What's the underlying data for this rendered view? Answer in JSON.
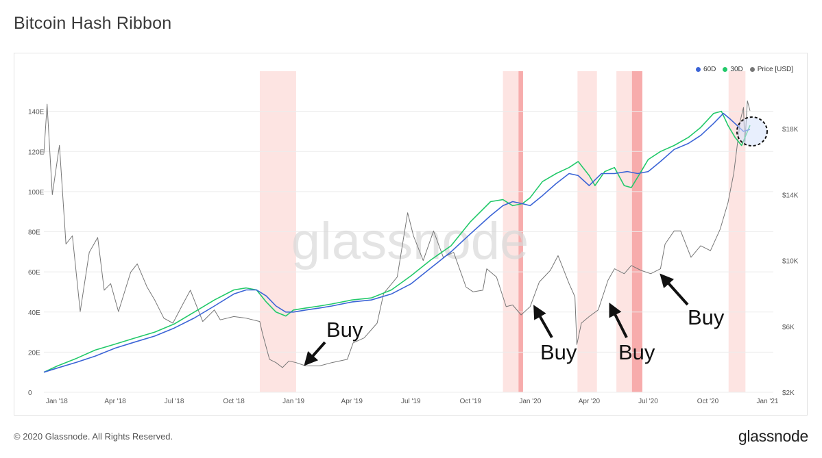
{
  "page": {
    "title": "Bitcoin Hash Ribbon",
    "footer_copyright": "© 2020 Glassnode. All Rights Reserved.",
    "footer_logo": "glassnode",
    "watermark": "glassnode"
  },
  "chart_data": {
    "type": "line",
    "title": "Bitcoin Hash Ribbon",
    "legend": {
      "placement": "top-right",
      "items": [
        {
          "name": "60D",
          "color": "#3b64d6"
        },
        {
          "name": "30D",
          "color": "#22c96a"
        },
        {
          "name": "Price [USD]",
          "color": "#777777"
        }
      ]
    },
    "x_ticks": [
      "Jan '18",
      "Apr '18",
      "Jul '18",
      "Oct '18",
      "Jan '19",
      "Apr '19",
      "Jul '19",
      "Oct '19",
      "Jan '20",
      "Apr '20",
      "Jul '20",
      "Oct '20",
      "Jan '21"
    ],
    "x_tick_dates": [
      "2018-01-01",
      "2018-04-01",
      "2018-07-01",
      "2018-10-01",
      "2019-01-01",
      "2019-04-01",
      "2019-07-01",
      "2019-10-01",
      "2020-01-01",
      "2020-04-01",
      "2020-07-01",
      "2020-10-01",
      "2021-01-01"
    ],
    "y_left": {
      "label": "",
      "ticks": [
        "0",
        "20E",
        "40E",
        "60E",
        "80E",
        "100E",
        "120E",
        "140E"
      ],
      "tick_values": [
        0,
        20,
        40,
        60,
        80,
        100,
        120,
        140
      ],
      "range": [
        0,
        160
      ]
    },
    "y_right": {
      "label": "",
      "ticks": [
        "$2K",
        "$6K",
        "$10K",
        "$14K",
        "$18K"
      ],
      "tick_values": [
        2000,
        6000,
        10000,
        14000,
        18000
      ],
      "range": [
        2000,
        21500
      ]
    },
    "capitulation_bands": [
      {
        "start": "2018-11-10",
        "end": "2019-01-05",
        "shade": "light"
      },
      {
        "start": "2019-11-20",
        "end": "2019-12-14",
        "shade": "light"
      },
      {
        "start": "2019-12-14",
        "end": "2019-12-21",
        "shade": "dark"
      },
      {
        "start": "2020-03-14",
        "end": "2020-04-13",
        "shade": "light"
      },
      {
        "start": "2020-05-13",
        "end": "2020-06-06",
        "shade": "light"
      },
      {
        "start": "2020-06-06",
        "end": "2020-06-22",
        "shade": "dark"
      },
      {
        "start": "2020-11-02",
        "end": "2020-11-28",
        "shade": "light"
      }
    ],
    "series": [
      {
        "name": "60D",
        "axis": "left",
        "color": "#3b64d6",
        "x": [
          "2017-12-12",
          "2018-01-01",
          "2018-02-01",
          "2018-03-01",
          "2018-04-01",
          "2018-05-01",
          "2018-06-01",
          "2018-07-01",
          "2018-08-01",
          "2018-09-01",
          "2018-10-01",
          "2018-10-20",
          "2018-11-05",
          "2018-11-20",
          "2018-12-05",
          "2018-12-20",
          "2019-01-01",
          "2019-01-20",
          "2019-02-10",
          "2019-03-01",
          "2019-04-01",
          "2019-05-01",
          "2019-06-01",
          "2019-07-01",
          "2019-08-01",
          "2019-09-01",
          "2019-10-01",
          "2019-11-01",
          "2019-11-20",
          "2019-12-05",
          "2019-12-20",
          "2020-01-01",
          "2020-01-20",
          "2020-02-10",
          "2020-03-01",
          "2020-03-15",
          "2020-04-01",
          "2020-04-20",
          "2020-05-10",
          "2020-05-30",
          "2020-06-15",
          "2020-07-01",
          "2020-07-20",
          "2020-08-10",
          "2020-09-01",
          "2020-09-20",
          "2020-10-10",
          "2020-10-25",
          "2020-11-05",
          "2020-11-15",
          "2020-11-25",
          "2020-12-05"
        ],
        "y": [
          10,
          12,
          15,
          18,
          22,
          25,
          28,
          32,
          37,
          43,
          49,
          51,
          51,
          48,
          43,
          40,
          40,
          41,
          42,
          43,
          45,
          46,
          49,
          54,
          62,
          70,
          79,
          88,
          93,
          95,
          94,
          93,
          98,
          104,
          109,
          108,
          103,
          109,
          109,
          110,
          109,
          110,
          115,
          121,
          124,
          128,
          134,
          139,
          136,
          133,
          130,
          131
        ]
      },
      {
        "name": "30D",
        "axis": "left",
        "color": "#22c96a",
        "x": [
          "2017-12-12",
          "2018-01-01",
          "2018-02-01",
          "2018-03-01",
          "2018-04-01",
          "2018-05-01",
          "2018-06-01",
          "2018-07-01",
          "2018-08-01",
          "2018-09-01",
          "2018-10-01",
          "2018-10-20",
          "2018-11-05",
          "2018-11-20",
          "2018-12-05",
          "2018-12-20",
          "2019-01-01",
          "2019-01-20",
          "2019-02-10",
          "2019-03-01",
          "2019-04-01",
          "2019-05-01",
          "2019-06-01",
          "2019-07-01",
          "2019-08-01",
          "2019-09-01",
          "2019-10-01",
          "2019-11-01",
          "2019-11-20",
          "2019-12-05",
          "2019-12-20",
          "2020-01-01",
          "2020-01-20",
          "2020-02-10",
          "2020-03-01",
          "2020-03-15",
          "2020-04-01",
          "2020-04-10",
          "2020-04-25",
          "2020-05-10",
          "2020-05-25",
          "2020-06-05",
          "2020-06-20",
          "2020-07-01",
          "2020-07-20",
          "2020-08-10",
          "2020-09-01",
          "2020-09-20",
          "2020-10-10",
          "2020-10-22",
          "2020-11-01",
          "2020-11-12",
          "2020-11-22",
          "2020-12-05"
        ],
        "y": [
          10,
          13,
          17,
          21,
          24,
          27,
          30,
          34,
          40,
          46,
          51,
          52,
          51,
          45,
          40,
          38,
          41,
          42,
          43,
          44,
          46,
          47,
          51,
          58,
          66,
          73,
          85,
          95,
          96,
          93,
          94,
          97,
          105,
          109,
          112,
          115,
          108,
          103,
          110,
          112,
          103,
          102,
          110,
          116,
          120,
          123,
          127,
          132,
          139,
          140,
          133,
          127,
          123,
          133
        ]
      },
      {
        "name": "Price [USD]",
        "axis": "right",
        "color": "#777777",
        "x": [
          "2017-12-12",
          "2017-12-17",
          "2017-12-25",
          "2018-01-05",
          "2018-01-15",
          "2018-01-25",
          "2018-02-06",
          "2018-02-20",
          "2018-03-05",
          "2018-03-15",
          "2018-03-25",
          "2018-04-06",
          "2018-04-25",
          "2018-05-05",
          "2018-05-20",
          "2018-06-01",
          "2018-06-15",
          "2018-06-29",
          "2018-07-15",
          "2018-07-26",
          "2018-08-14",
          "2018-09-01",
          "2018-09-10",
          "2018-10-01",
          "2018-10-20",
          "2018-11-10",
          "2018-11-14",
          "2018-11-25",
          "2018-12-05",
          "2018-12-15",
          "2018-12-25",
          "2019-01-05",
          "2019-01-20",
          "2019-02-10",
          "2019-03-01",
          "2019-03-25",
          "2019-04-03",
          "2019-04-20",
          "2019-05-10",
          "2019-05-20",
          "2019-06-10",
          "2019-06-26",
          "2019-07-05",
          "2019-07-20",
          "2019-08-05",
          "2019-08-20",
          "2019-09-05",
          "2019-09-24",
          "2019-10-05",
          "2019-10-20",
          "2019-10-26",
          "2019-11-10",
          "2019-11-25",
          "2019-12-05",
          "2019-12-18",
          "2020-01-01",
          "2020-01-15",
          "2020-02-01",
          "2020-02-13",
          "2020-03-01",
          "2020-03-10",
          "2020-03-13",
          "2020-03-20",
          "2020-04-01",
          "2020-04-15",
          "2020-04-30",
          "2020-05-10",
          "2020-05-25",
          "2020-06-05",
          "2020-06-20",
          "2020-07-05",
          "2020-07-20",
          "2020-07-27",
          "2020-08-10",
          "2020-08-20",
          "2020-09-05",
          "2020-09-20",
          "2020-10-05",
          "2020-10-20",
          "2020-11-01",
          "2020-11-10",
          "2020-11-20",
          "2020-11-25",
          "2020-11-27",
          "2020-12-01",
          "2020-12-05"
        ],
        "y": [
          16500,
          19500,
          14000,
          17000,
          11000,
          11500,
          6900,
          10500,
          11400,
          8200,
          8600,
          6900,
          9300,
          9800,
          8400,
          7600,
          6500,
          6200,
          7400,
          8200,
          6300,
          7000,
          6400,
          6600,
          6500,
          6300,
          5600,
          4000,
          3800,
          3500,
          3900,
          3800,
          3600,
          3600,
          3800,
          4000,
          5000,
          5300,
          6200,
          8000,
          9000,
          12900,
          11500,
          10000,
          11800,
          10200,
          10500,
          8400,
          8100,
          8200,
          9500,
          9000,
          7200,
          7300,
          6700,
          7200,
          8700,
          9400,
          10300,
          8600,
          7800,
          4900,
          6200,
          6600,
          7000,
          8800,
          9500,
          9200,
          9700,
          9400,
          9200,
          9500,
          11000,
          11800,
          11800,
          10200,
          10900,
          10600,
          11900,
          13500,
          15300,
          18500,
          19300,
          17000,
          19700,
          19100
        ]
      }
    ],
    "annotations": [
      {
        "text": "Buy",
        "date": "2019-01-01"
      },
      {
        "text": "Buy",
        "date": "2019-12-20"
      },
      {
        "text": "Buy",
        "date": "2020-04-06"
      },
      {
        "text": "Buy",
        "date": "2020-07-10"
      }
    ],
    "highlight_circle": {
      "date": "2020-12-05"
    },
    "grid": true
  }
}
